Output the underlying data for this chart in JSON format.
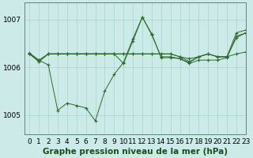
{
  "title": "Graphe pression niveau de la mer (hPa)",
  "bg_color": "#cceae8",
  "grid_color": "#aad4d0",
  "line_color": "#2d6a2d",
  "xlim": [
    -0.5,
    23
  ],
  "ylim": [
    1004.6,
    1007.35
  ],
  "yticks": [
    1005,
    1006,
    1007
  ],
  "xtick_labels": [
    "0",
    "1",
    "2",
    "3",
    "4",
    "5",
    "6",
    "7",
    "8",
    "9",
    "10",
    "11",
    "12",
    "13",
    "14",
    "15",
    "16",
    "17",
    "18",
    "19",
    "20",
    "21",
    "22",
    "23"
  ],
  "series": [
    [
      1006.3,
      1006.15,
      1006.05,
      1005.1,
      1005.25,
      1005.2,
      1005.15,
      1004.88,
      1005.5,
      1005.85,
      1006.1,
      1006.6,
      1007.05,
      1006.7,
      1006.2,
      1006.2,
      1006.18,
      1006.08,
      1006.15,
      1006.15,
      1006.15,
      1006.2,
      1006.65,
      1006.72
    ],
    [
      1006.28,
      1006.15,
      1006.28,
      1006.28,
      1006.28,
      1006.28,
      1006.28,
      1006.28,
      1006.28,
      1006.28,
      1006.28,
      1006.28,
      1006.28,
      1006.28,
      1006.28,
      1006.28,
      1006.22,
      1006.18,
      1006.22,
      1006.28,
      1006.22,
      1006.22,
      1006.72,
      1006.78
    ],
    [
      1006.28,
      1006.12,
      1006.28,
      1006.28,
      1006.28,
      1006.28,
      1006.28,
      1006.28,
      1006.28,
      1006.28,
      1006.28,
      1006.28,
      1006.28,
      1006.28,
      1006.28,
      1006.28,
      1006.22,
      1006.12,
      1006.22,
      1006.28,
      1006.22,
      1006.22,
      1006.28,
      1006.32
    ],
    [
      1006.28,
      1006.12,
      1006.28,
      1006.28,
      1006.28,
      1006.28,
      1006.28,
      1006.28,
      1006.28,
      1006.28,
      1006.08,
      1006.55,
      1007.05,
      1006.68,
      1006.22,
      1006.22,
      1006.18,
      1006.1,
      1006.22,
      1006.28,
      1006.22,
      1006.22,
      1006.62,
      1006.72
    ]
  ],
  "label_fontsize": 6.5,
  "title_fontsize": 7.5
}
